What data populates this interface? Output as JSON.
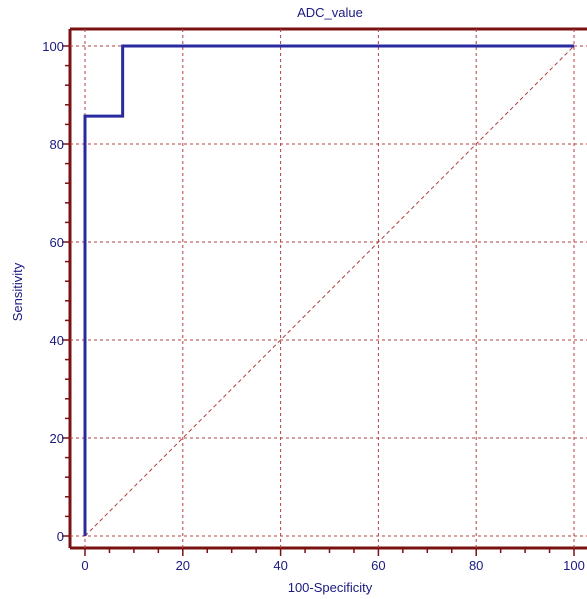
{
  "chart_data": {
    "type": "line",
    "title": "ADC_value",
    "xlabel": "100-Specificity",
    "ylabel": "Sensitivity",
    "xlim": [
      0,
      100
    ],
    "ylim": [
      0,
      100
    ],
    "xticks": [
      0,
      20,
      40,
      60,
      80,
      100
    ],
    "yticks": [
      0,
      20,
      40,
      60,
      80,
      100
    ],
    "grid": true,
    "series": [
      {
        "x": [
          0,
          0,
          7.7,
          7.7,
          100
        ],
        "y": [
          0,
          85.7,
          85.7,
          100,
          100
        ],
        "color": "#2a2aa0",
        "style": "step"
      }
    ],
    "reference_line": {
      "x": [
        0,
        100
      ],
      "y": [
        0,
        100
      ],
      "color": "#b04040",
      "style": "dashed"
    },
    "colors": {
      "frame": "#7a1010",
      "grid": "#b04040",
      "text": "#1a1a80"
    }
  }
}
